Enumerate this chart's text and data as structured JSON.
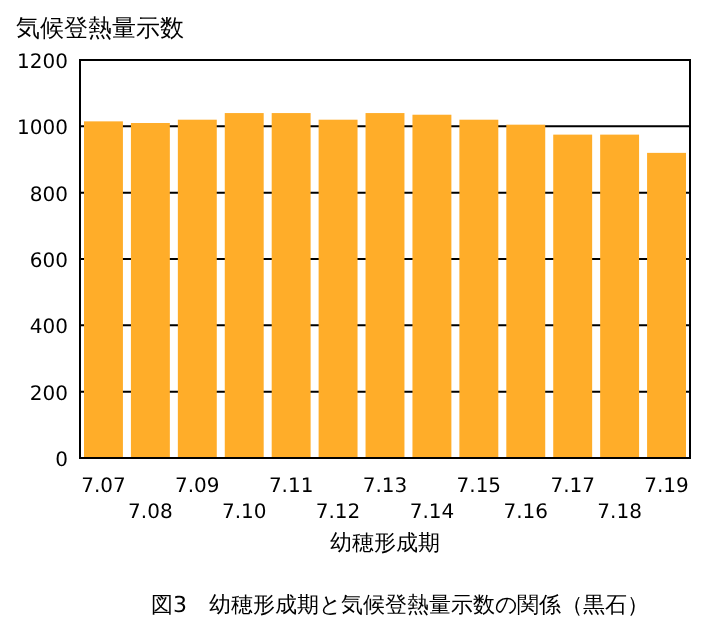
{
  "chart_data": {
    "type": "bar",
    "categories": [
      "7.07",
      "7.08",
      "7.09",
      "7.10",
      "7.11",
      "7.12",
      "7.13",
      "7.14",
      "7.15",
      "7.16",
      "7.17",
      "7.18",
      "7.19"
    ],
    "values": [
      1015,
      1010,
      1020,
      1040,
      1040,
      1020,
      1040,
      1035,
      1020,
      1005,
      975,
      975,
      920
    ],
    "color": "#ffad29",
    "ylabel": "気候登熱量示数",
    "xlabel": "幼穂形成期",
    "annotations": [
      "図3　幼穂形成期と気候登熱量示数の関係（黒石）"
    ],
    "ylim": [
      0,
      1200
    ],
    "yticks": [
      0,
      200,
      400,
      600,
      800,
      1000,
      1200
    ],
    "grid": "y"
  }
}
